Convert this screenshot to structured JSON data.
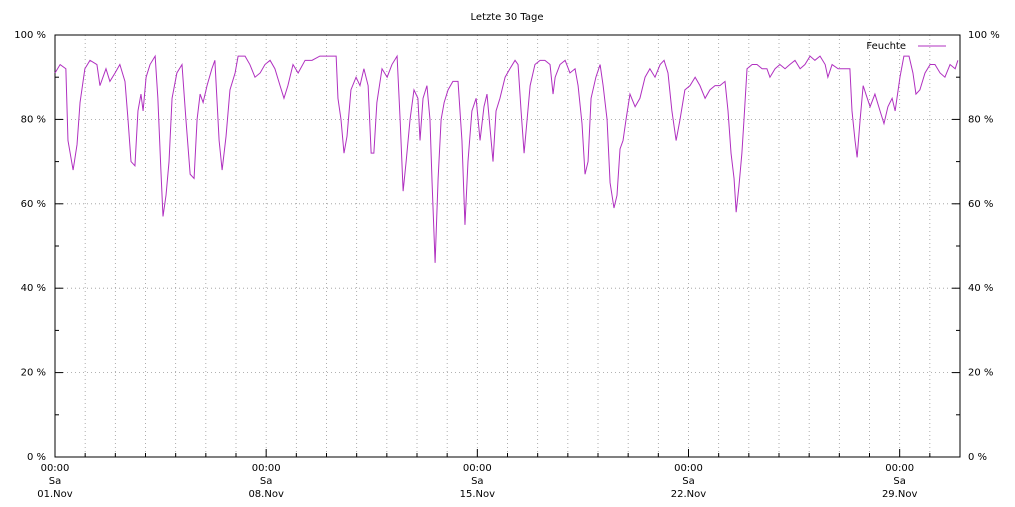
{
  "chart_data": {
    "type": "line",
    "title": "Letzte 30 Tage",
    "x": [
      0,
      0.17,
      0.36,
      0.43,
      0.6,
      0.73,
      0.83,
      0.99,
      1.16,
      1.39,
      1.49,
      1.59,
      1.69,
      1.82,
      1.99,
      2.15,
      2.32,
      2.42,
      2.52,
      2.65,
      2.75,
      2.85,
      2.92,
      3.02,
      3.15,
      3.32,
      3.41,
      3.51,
      3.58,
      3.68,
      3.78,
      3.88,
      4.04,
      4.21,
      4.34,
      4.48,
      4.61,
      4.71,
      4.81,
      4.91,
      5.04,
      5.2,
      5.3,
      5.44,
      5.54,
      5.67,
      5.8,
      5.97,
      6.07,
      6.3,
      6.46,
      6.63,
      6.8,
      6.96,
      7.13,
      7.29,
      7.46,
      7.59,
      7.72,
      7.89,
      8.06,
      8.29,
      8.52,
      8.78,
      8.95,
      9.32,
      9.38,
      9.48,
      9.58,
      9.68,
      9.81,
      9.98,
      10.11,
      10.24,
      10.38,
      10.48,
      10.57,
      10.67,
      10.84,
      11.01,
      11.17,
      11.34,
      11.44,
      11.54,
      11.64,
      11.77,
      11.9,
      12.03,
      12.1,
      12.2,
      12.33,
      12.43,
      12.5,
      12.6,
      12.7,
      12.8,
      12.9,
      13.03,
      13.19,
      13.36,
      13.49,
      13.59,
      13.69,
      13.82,
      13.96,
      14.09,
      14.22,
      14.32,
      14.42,
      14.52,
      14.62,
      14.75,
      14.92,
      15.08,
      15.25,
      15.35,
      15.45,
      15.55,
      15.65,
      15.75,
      15.91,
      16.08,
      16.24,
      16.41,
      16.51,
      16.58,
      16.74,
      16.91,
      17.07,
      17.24,
      17.34,
      17.47,
      17.57,
      17.67,
      17.77,
      17.93,
      18.07,
      18.17,
      18.3,
      18.4,
      18.53,
      18.63,
      18.73,
      18.83,
      18.93,
      19.06,
      19.23,
      19.39,
      19.56,
      19.72,
      19.89,
      20.06,
      20.19,
      20.32,
      20.45,
      20.59,
      20.72,
      20.88,
      21.05,
      21.22,
      21.38,
      21.55,
      21.71,
      21.88,
      22.04,
      22.21,
      22.31,
      22.41,
      22.51,
      22.58,
      22.67,
      22.77,
      22.84,
      22.94,
      23.11,
      23.27,
      23.44,
      23.6,
      23.7,
      23.87,
      24.03,
      24.2,
      24.36,
      24.53,
      24.7,
      24.86,
      25.03,
      25.19,
      25.36,
      25.53,
      25.62,
      25.76,
      25.96,
      26.19,
      26.35,
      26.42,
      26.52,
      26.59,
      26.69,
      26.79,
      26.88,
      27.02,
      27.18,
      27.35,
      27.48,
      27.61,
      27.75,
      27.85,
      28.01,
      28.14,
      28.31,
      28.44,
      28.54,
      28.67,
      28.84,
      29.01,
      29.17,
      29.34,
      29.5,
      29.67,
      29.84,
      29.93
    ],
    "series": [
      {
        "name": "Feuchte",
        "color": "#b030c0",
        "values": [
          91,
          93,
          92,
          75,
          68,
          74,
          84,
          92,
          94,
          93,
          88,
          90,
          92,
          89,
          91,
          93,
          89,
          80,
          70,
          69,
          82,
          86,
          82,
          90,
          93,
          95,
          85,
          68,
          57,
          62,
          70,
          85,
          91,
          93,
          80,
          67,
          66,
          80,
          86,
          84,
          88,
          92,
          94,
          75,
          68,
          76,
          87,
          91,
          95,
          95,
          93,
          90,
          91,
          93,
          94,
          92,
          88,
          85,
          88,
          93,
          91,
          94,
          94,
          95,
          95,
          95,
          85,
          80,
          72,
          76,
          87,
          90,
          88,
          92,
          88,
          72,
          72,
          84,
          92,
          90,
          93,
          95,
          80,
          63,
          70,
          80,
          87,
          85,
          75,
          85,
          88,
          80,
          65,
          46,
          66,
          80,
          84,
          87,
          89,
          89,
          75,
          55,
          70,
          82,
          85,
          75,
          83,
          86,
          78,
          70,
          82,
          85,
          90,
          92,
          94,
          93,
          82,
          72,
          80,
          88,
          93,
          94,
          94,
          93,
          86,
          90,
          93,
          94,
          91,
          92,
          88,
          79,
          67,
          70,
          85,
          90,
          93,
          88,
          80,
          65,
          59,
          62,
          73,
          75,
          80,
          86,
          83,
          85,
          90,
          92,
          90,
          93,
          94,
          91,
          82,
          75,
          80,
          87,
          88,
          90,
          88,
          85,
          87,
          88,
          88,
          89,
          82,
          72,
          66,
          58,
          64,
          72,
          80,
          92,
          93,
          93,
          92,
          92,
          90,
          92,
          93,
          92,
          93,
          94,
          92,
          93,
          95,
          94,
          95,
          93,
          90,
          93,
          92,
          92,
          92,
          82,
          75,
          71,
          80,
          88,
          86,
          83,
          86,
          82,
          79,
          83,
          85,
          82,
          90,
          95,
          95,
          91,
          86,
          87,
          91,
          93,
          93,
          91,
          90,
          93,
          92,
          94
        ]
      }
    ],
    "xlim": [
      0,
      30
    ],
    "xticks": [
      {
        "value": 0,
        "label": "00:00\nSa\n01.Nov"
      },
      {
        "value": 7,
        "label": "00:00\nSa\n08.Nov"
      },
      {
        "value": 14,
        "label": "00:00\nSa\n15.Nov"
      },
      {
        "value": 21,
        "label": "00:00\nSa\n22.Nov"
      },
      {
        "value": 28,
        "label": "00:00\nSa\n29.Nov"
      }
    ],
    "xminorticks": [
      1,
      2,
      3,
      4,
      5,
      6,
      8,
      9,
      10,
      11,
      12,
      13,
      15,
      16,
      17,
      18,
      19,
      20,
      22,
      23,
      24,
      25,
      26,
      27,
      29
    ],
    "ylim": [
      0,
      100
    ],
    "yticks": [
      {
        "value": 0,
        "label": "0 %"
      },
      {
        "value": 20,
        "label": "20 %"
      },
      {
        "value": 40,
        "label": "40 %"
      },
      {
        "value": 60,
        "label": "60 %"
      },
      {
        "value": 80,
        "label": "80 %"
      },
      {
        "value": 100,
        "label": "100 %"
      }
    ],
    "yminorticks": [
      10,
      30,
      50,
      70,
      90
    ],
    "grid": true,
    "legend": "top-right"
  }
}
